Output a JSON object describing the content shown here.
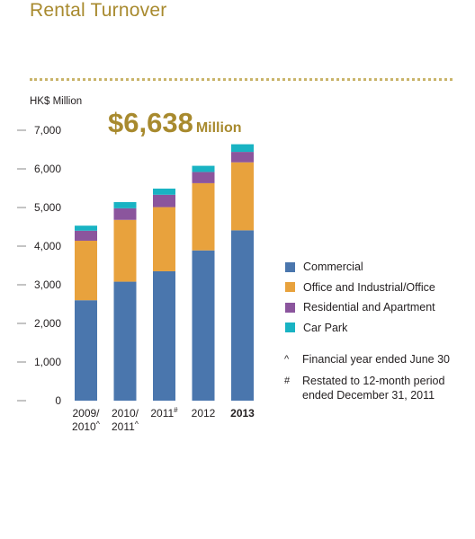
{
  "header": {
    "title": "Rental Turnover"
  },
  "highlight": {
    "amount": "$6,638",
    "unit": "Million"
  },
  "notes": [
    {
      "symbol": "^",
      "text": "Financial year ended June 30"
    },
    {
      "symbol": "#",
      "text": "Restated to 12-month period ended December 31, 2011"
    }
  ],
  "chart_data": {
    "type": "bar",
    "stacked": true,
    "ylabel": "HK$ Million",
    "ylim": [
      0,
      7000
    ],
    "yticks": [
      0,
      1000,
      2000,
      3000,
      4000,
      5000,
      6000,
      7000
    ],
    "ytick_labels": [
      "0",
      "1,000",
      "2,000",
      "3,000",
      "4,000",
      "5,000",
      "6,000",
      "7,000"
    ],
    "categories": [
      {
        "line1": "2009/",
        "line2": "2010",
        "sup": "^",
        "bold": false
      },
      {
        "line1": "2010/",
        "line2": "2011",
        "sup": "^",
        "bold": false
      },
      {
        "line1": "2011",
        "line2": "",
        "sup": "#",
        "bold": false
      },
      {
        "line1": "2012",
        "line2": "",
        "sup": "",
        "bold": false
      },
      {
        "line1": "2013",
        "line2": "",
        "sup": "",
        "bold": true
      }
    ],
    "series": [
      {
        "name": "Commercial",
        "color": "#4a76ad",
        "values": [
          2600,
          3080,
          3350,
          3890,
          4410
        ]
      },
      {
        "name": "Office and Industrial/Office",
        "color": "#e8a23d",
        "values": [
          1540,
          1600,
          1660,
          1740,
          1760
        ]
      },
      {
        "name": "Residential and Apartment",
        "color": "#8b559d",
        "values": [
          260,
          300,
          320,
          290,
          270
        ]
      },
      {
        "name": "Car Park",
        "color": "#19b3c3",
        "values": [
          130,
          160,
          160,
          160,
          198
        ]
      }
    ],
    "grid": false,
    "legend_position": "right"
  }
}
